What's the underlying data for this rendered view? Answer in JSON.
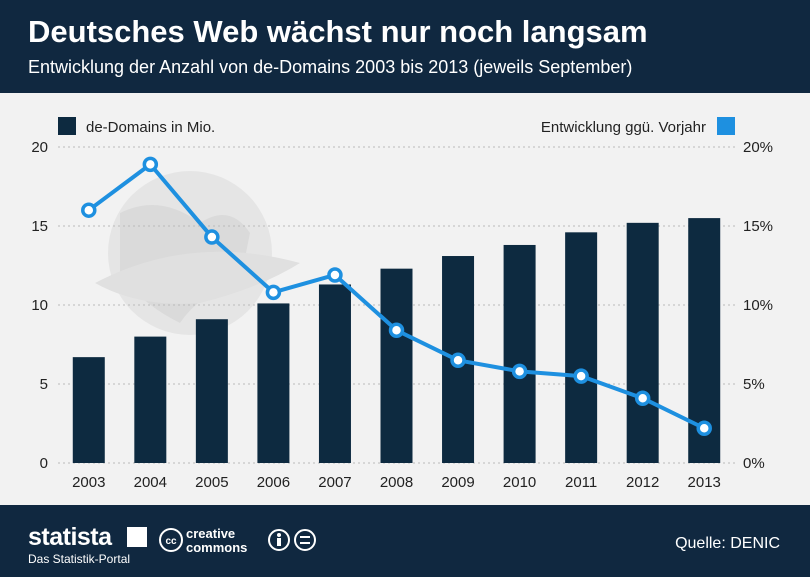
{
  "header": {
    "title": "Deutsches Web wächst nur noch langsam",
    "subtitle": "Entwicklung der Anzahl von de-Domains 2003 bis 2013 (jeweils September)"
  },
  "chart_data": {
    "type": "bar",
    "categories": [
      "2003",
      "2004",
      "2005",
      "2006",
      "2007",
      "2008",
      "2009",
      "2010",
      "2011",
      "2012",
      "2013"
    ],
    "series": [
      {
        "name": "de-Domains in Mio.",
        "type": "bar",
        "axis": "left",
        "color": "#0d2a40",
        "values": [
          6.7,
          8.0,
          9.1,
          10.1,
          11.3,
          12.3,
          13.1,
          13.8,
          14.6,
          15.2,
          15.5
        ]
      },
      {
        "name": "Entwicklung ggü. Vorjahr",
        "type": "line",
        "axis": "right",
        "color": "#1e90e0",
        "values": [
          16.0,
          18.9,
          14.3,
          10.8,
          11.9,
          8.4,
          6.5,
          5.8,
          5.5,
          4.1,
          2.2
        ]
      }
    ],
    "y_left": {
      "min": 0,
      "max": 20,
      "ticks": [
        "0",
        "5",
        "10",
        "15",
        "20"
      ]
    },
    "y_right": {
      "min": 0,
      "max": 20,
      "ticks": [
        "0%",
        "5%",
        "10%",
        "15%",
        "20%"
      ]
    },
    "grid": true,
    "legend": "top"
  },
  "footer": {
    "brand": "statista",
    "tagline": "Das Statistik-Portal",
    "license_cc": "creative",
    "license_commons": "commons",
    "license_cc_mark": "cc",
    "source": "Quelle: DENIC"
  }
}
